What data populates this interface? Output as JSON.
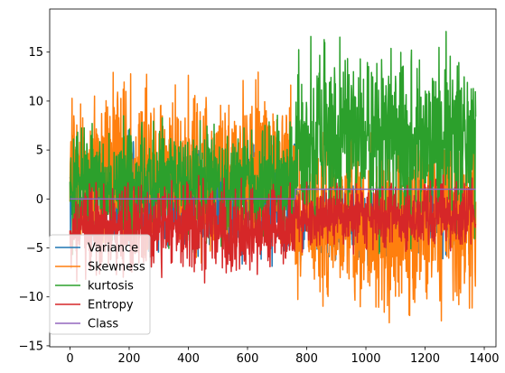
{
  "chart_data": {
    "type": "line",
    "title": "",
    "xlabel": "",
    "ylabel": "",
    "n_points": 1372,
    "xlim": [
      -68.55,
      1439.55
    ],
    "ylim": [
      -15.1,
      19.4
    ],
    "x_ticks": [
      0,
      200,
      400,
      600,
      800,
      1000,
      1200,
      1400
    ],
    "x_tick_labels": [
      "0",
      "200",
      "400",
      "600",
      "800",
      "1000",
      "1200",
      "1400"
    ],
    "y_ticks": [
      -15,
      -10,
      -5,
      0,
      5,
      10,
      15
    ],
    "y_tick_labels": [
      "−15",
      "−10",
      "−5",
      "0",
      "5",
      "10",
      "15"
    ],
    "grid": false,
    "legend_position": "lower-left",
    "series": [
      {
        "name": "Variance",
        "color": "#1f77b4",
        "approx_range_class0": [
          -7.0,
          6.8
        ],
        "approx_range_class1": [
          -7.0,
          2.5
        ]
      },
      {
        "name": "Skewness",
        "color": "#ff7f0e",
        "approx_range_class0": [
          -6.9,
          12.9
        ],
        "approx_range_class1": [
          -13.8,
          9.6
        ]
      },
      {
        "name": "kurtosis",
        "color": "#2ca02c",
        "approx_range_class0": [
          -5.3,
          8.8
        ],
        "approx_range_class1": [
          -5.3,
          17.9
        ]
      },
      {
        "name": "Entropy",
        "color": "#d62728",
        "approx_range_class0": [
          -8.5,
          2.4
        ],
        "approx_range_class1": [
          -6.0,
          2.4
        ]
      },
      {
        "name": "Class",
        "color": "#9467bd",
        "segments": [
          {
            "x_start": 0,
            "x_end": 761,
            "value": 0
          },
          {
            "x_start": 762,
            "x_end": 1371,
            "value": 1
          }
        ]
      }
    ]
  }
}
